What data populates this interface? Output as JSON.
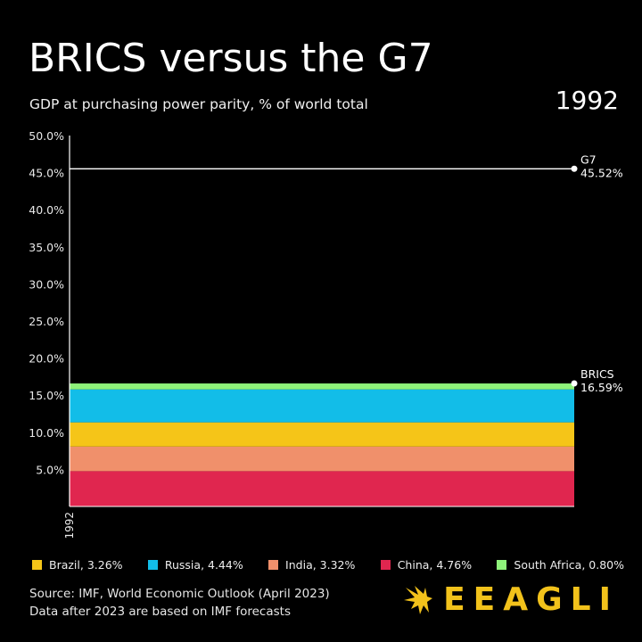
{
  "header": {
    "title": "BRICS versus the G7",
    "subtitle": "GDP at purchasing power parity, % of world total",
    "year": "1992"
  },
  "chart_data": {
    "type": "area",
    "title": "BRICS versus the G7",
    "subtitle": "GDP at purchasing power parity, % of world total",
    "x": [
      "1992"
    ],
    "ylim": [
      0,
      50
    ],
    "yticks": [
      "50.0%",
      "45.0%",
      "40.0%",
      "35.0%",
      "30.0%",
      "25.0%",
      "20.0%",
      "15.0%",
      "10.0%",
      "5.0%"
    ],
    "ytick_values": [
      50,
      45,
      40,
      35,
      30,
      25,
      20,
      15,
      10,
      5
    ],
    "xtick_label": "1992",
    "stack_order": [
      "China",
      "India",
      "Brazil",
      "Russia",
      "South Africa"
    ],
    "series": [
      {
        "name": "China",
        "values": [
          4.76
        ],
        "color": "#e0264f"
      },
      {
        "name": "India",
        "values": [
          3.32
        ],
        "color": "#f0906b"
      },
      {
        "name": "Brazil",
        "values": [
          3.26
        ],
        "color": "#f5c518"
      },
      {
        "name": "Russia",
        "values": [
          4.44
        ],
        "color": "#12bde8"
      },
      {
        "name": "South Africa",
        "values": [
          0.8
        ],
        "color": "#8ef27a"
      }
    ],
    "lines": [
      {
        "name": "G7",
        "value": 45.52,
        "label": "G7",
        "value_label": "45.52%",
        "color": "#ffffff"
      },
      {
        "name": "BRICS",
        "value": 16.59,
        "label": "BRICS",
        "value_label": "16.59%",
        "color": "#ffffff"
      }
    ],
    "grid": false
  },
  "legend": [
    {
      "label": "Brazil, 3.26%",
      "color": "#f5c518"
    },
    {
      "label": "Russia, 4.44%",
      "color": "#12bde8"
    },
    {
      "label": "India, 3.32%",
      "color": "#f0906b"
    },
    {
      "label": "China, 4.76%",
      "color": "#e0264f"
    },
    {
      "label": "South Africa, 0.80%",
      "color": "#8ef27a"
    }
  ],
  "footer": {
    "source_line1": "Source: IMF, World Economic Outlook (April 2023)",
    "source_line2": "Data after 2023 are based on IMF forecasts",
    "brand": "EEAGLI",
    "brand_color": "#f2c21b"
  }
}
